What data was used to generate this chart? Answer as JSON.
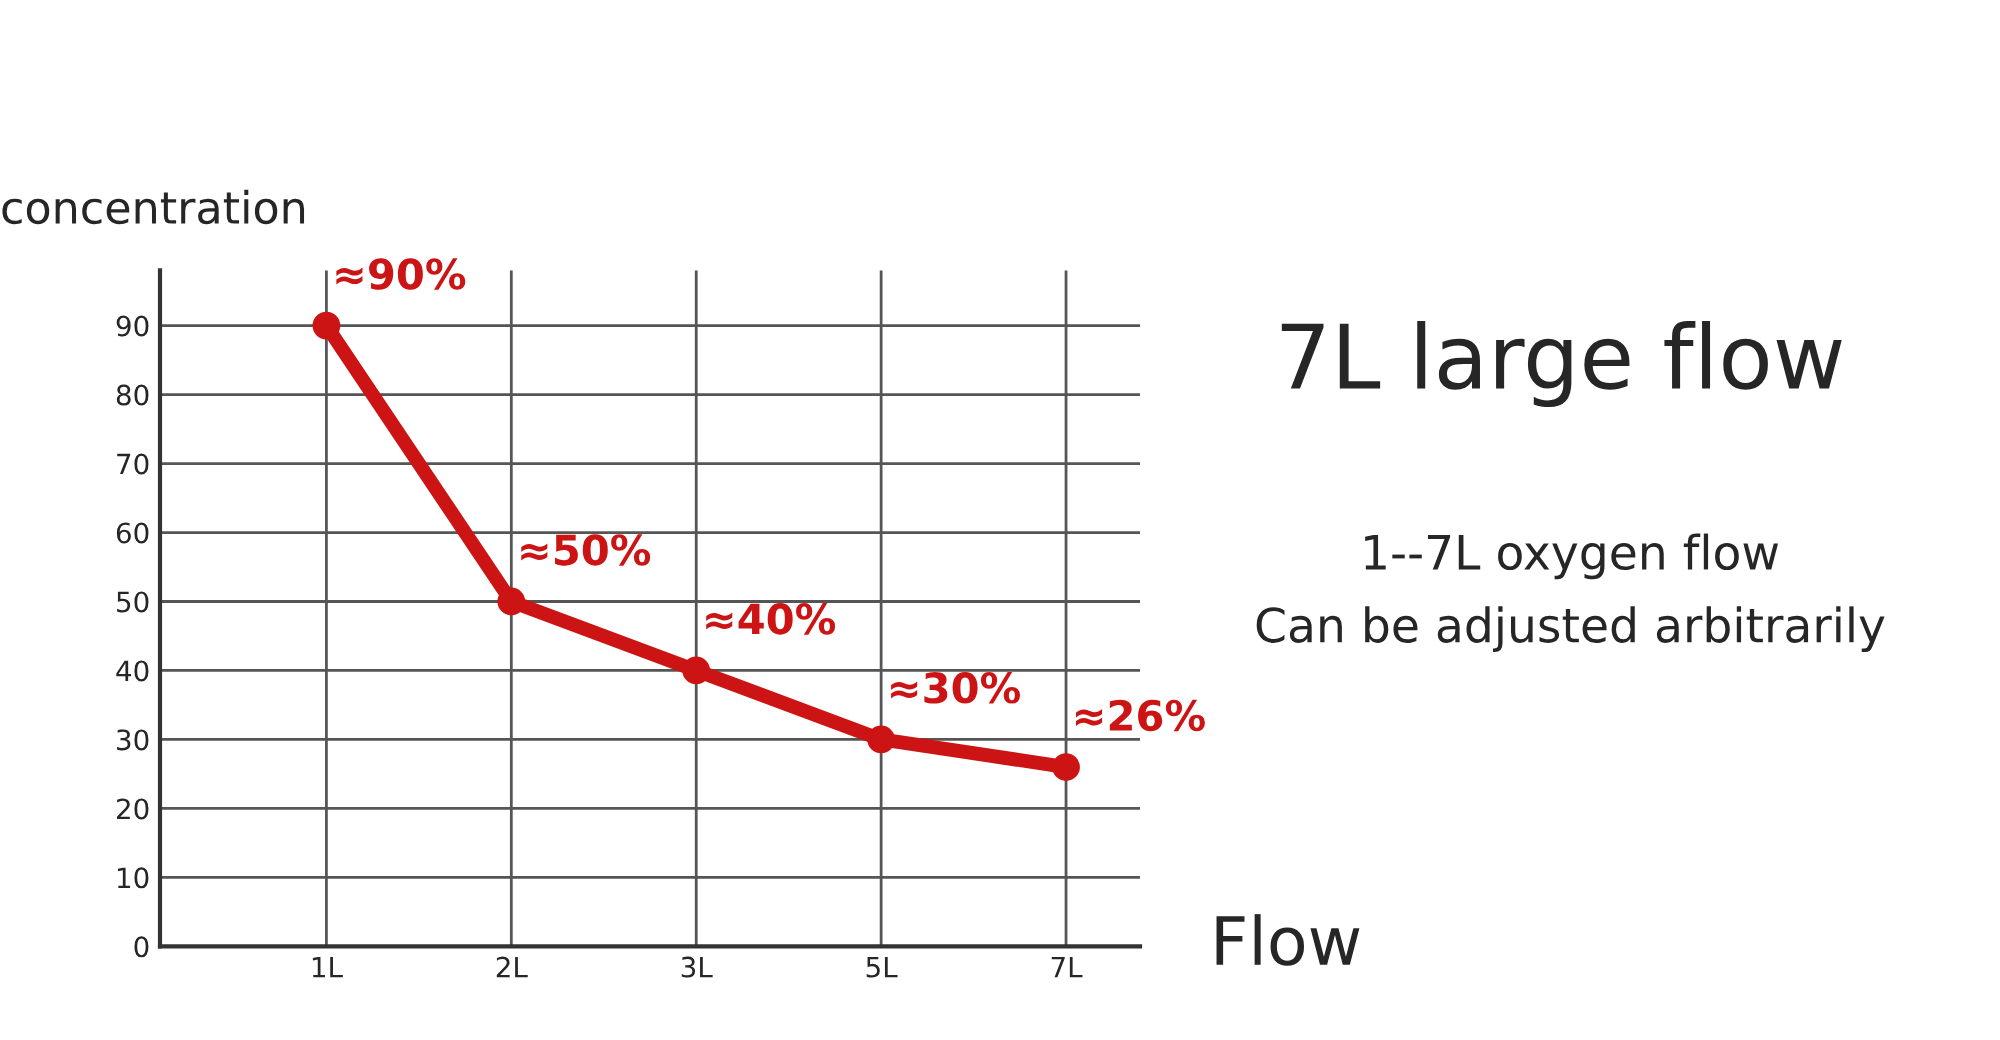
{
  "chart_data": {
    "type": "line",
    "title": "7L large flow",
    "ylabel": "concentration",
    "xlabel": "Flow",
    "annotations": [
      "1--7L oxygen flow",
      "Can be adjusted arbitrarily"
    ],
    "categories": [
      "1L",
      "2L",
      "3L",
      "5L",
      "7L"
    ],
    "series": [
      {
        "color": "#cc1414",
        "values": [
          90,
          50,
          40,
          30,
          26
        ],
        "value_labels": [
          "≈90%",
          "≈50%",
          "≈40%",
          "≈30%",
          "≈26%"
        ]
      }
    ],
    "ylim": [
      0,
      98
    ],
    "yticks": [
      0,
      10,
      20,
      30,
      40,
      50,
      60,
      70,
      80,
      90
    ],
    "grid": true,
    "marker": "circle",
    "line_style": "solid"
  }
}
